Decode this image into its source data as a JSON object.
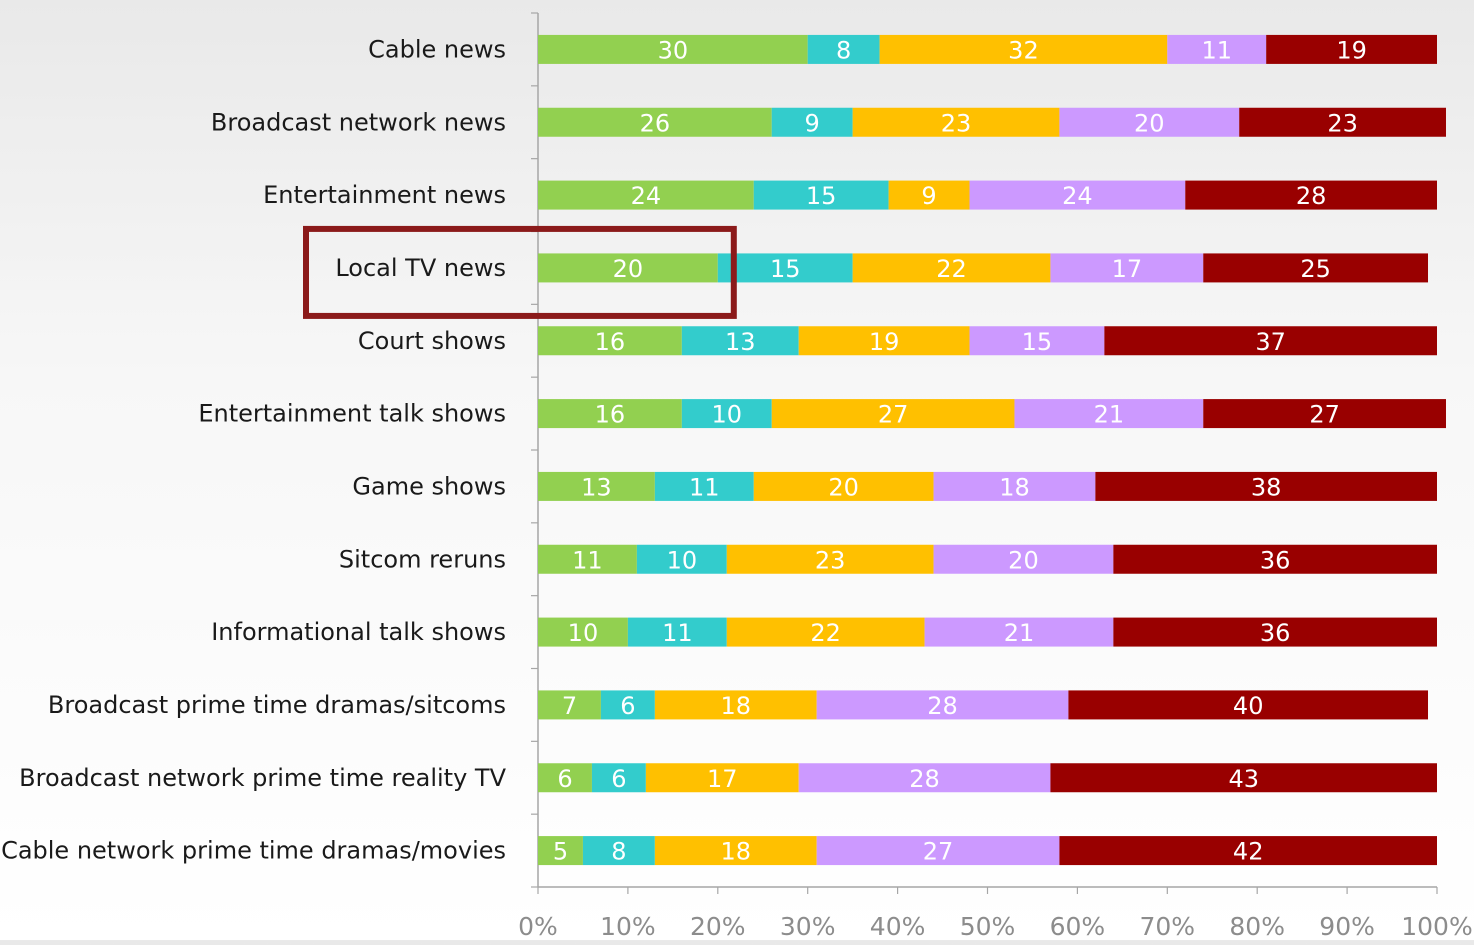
{
  "chart_data": {
    "type": "bar",
    "orientation": "horizontal",
    "stacked": true,
    "percent": true,
    "title": "",
    "xlabel": "",
    "ylabel": "",
    "xlim": [
      0,
      100
    ],
    "x_ticks": [
      "0%",
      "10%",
      "20%",
      "30%",
      "40%",
      "50%",
      "60%",
      "70%",
      "80%",
      "90%",
      "100%"
    ],
    "grid": false,
    "legend": "none",
    "categories": [
      "Cable news",
      "Broadcast network news",
      "Entertainment news",
      "Local TV news",
      "Court shows",
      "Entertainment talk shows",
      "Game shows",
      "Sitcom reruns",
      "Informational talk shows",
      "Broadcast prime time dramas/sitcoms",
      "Broadcast network prime time reality TV",
      "Cable network prime time dramas/movies"
    ],
    "series": [
      {
        "color": "#92d050",
        "values": [
          30,
          26,
          24,
          20,
          16,
          16,
          13,
          11,
          10,
          7,
          6,
          5
        ]
      },
      {
        "color": "#33cccc",
        "values": [
          8,
          9,
          15,
          15,
          13,
          10,
          11,
          10,
          11,
          6,
          6,
          8
        ]
      },
      {
        "color": "#ffc000",
        "values": [
          32,
          23,
          9,
          22,
          19,
          27,
          20,
          23,
          22,
          18,
          17,
          18
        ]
      },
      {
        "color": "#cc99ff",
        "values": [
          11,
          20,
          24,
          17,
          15,
          21,
          18,
          20,
          21,
          28,
          28,
          27
        ]
      },
      {
        "color": "#990000",
        "values": [
          19,
          23,
          28,
          25,
          37,
          27,
          38,
          36,
          36,
          40,
          43,
          42
        ]
      }
    ],
    "highlight": {
      "category": "Local TV news",
      "value_through": 20,
      "color": "#8b1a1a"
    }
  }
}
